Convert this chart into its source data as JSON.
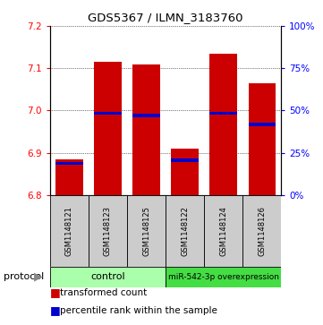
{
  "title": "GDS5367 / ILMN_3183760",
  "samples": [
    "GSM1148121",
    "GSM1148123",
    "GSM1148125",
    "GSM1148122",
    "GSM1148124",
    "GSM1148126"
  ],
  "bar_values": [
    6.885,
    7.115,
    7.11,
    6.91,
    7.135,
    7.065
  ],
  "bar_base": 6.8,
  "percentile_values": [
    6.875,
    6.993,
    6.988,
    6.882,
    6.993,
    6.967
  ],
  "ylim": [
    6.8,
    7.2
  ],
  "yticks_left": [
    6.8,
    6.9,
    7.0,
    7.1,
    7.2
  ],
  "yticks_right": [
    0,
    25,
    50,
    75,
    100
  ],
  "bar_color": "#cc0000",
  "percentile_color": "#0000cc",
  "bar_width": 0.7,
  "control_label": "control",
  "treatment_label": "miR-542-3p overexpression",
  "protocol_label": "protocol",
  "legend_bar_label": "transformed count",
  "legend_pct_label": "percentile rank within the sample",
  "bg_color": "#cccccc",
  "control_group_color": "#aaffaa",
  "treatment_group_color": "#44dd44"
}
